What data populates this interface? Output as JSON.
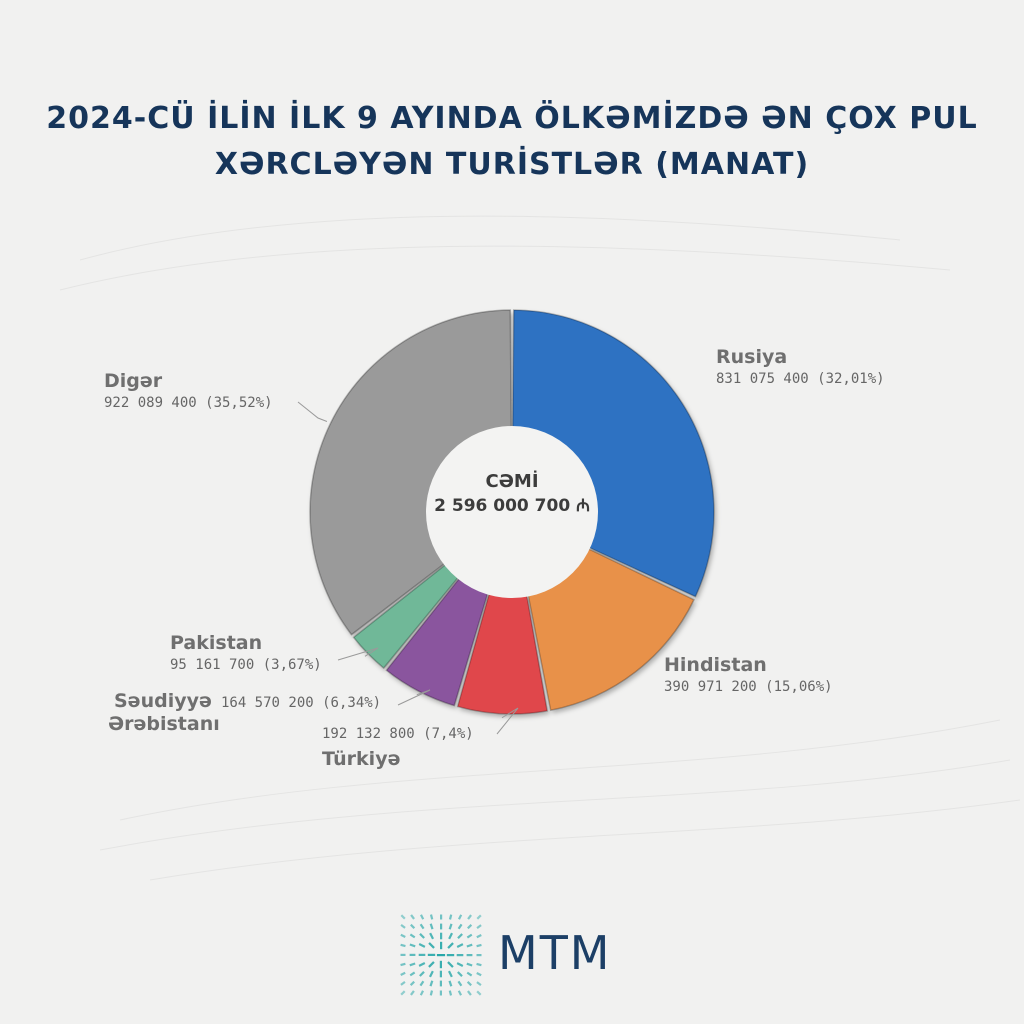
{
  "title_lines": [
    "2024-CÜ İLİN İLK 9 AYINDA ÖLKƏMİZDƏ ƏN ÇOX PUL",
    "XƏRCLƏYƏN TURİSTLƏR (MANAT)"
  ],
  "center": {
    "label": "CƏMİ",
    "total": "2 596 000 700 ₼"
  },
  "brand": {
    "name": "MTM"
  },
  "colors": {
    "Rusiya": "#2f72c2",
    "Hindistan": "#e8914a",
    "Türkiyə": "#e0474c",
    "Səudiyyə Ərəbistanı": "#8a549e",
    "Pakistan": "#6fb898",
    "Digər": "#9a9a9a",
    "title": "#16355a",
    "logo_teal": "#27a7a9",
    "logo_navy": "#1c3f66"
  },
  "chart_data": {
    "type": "pie",
    "title": "2024-CÜ İLİN İLK 9 AYINDA ÖLKƏMİZDƏ ƏN ÇOX PUL XƏRCLƏYƏN TURİSTLƏR (MANAT)",
    "categories": [
      "Rusiya",
      "Hindistan",
      "Türkiyə",
      "Səudiyyə Ərəbistanı",
      "Pakistan",
      "Digər"
    ],
    "values": [
      831075400,
      390971200,
      192132800,
      164570200,
      95161700,
      922089400
    ],
    "percentages": [
      32.01,
      15.06,
      7.4,
      6.34,
      3.67,
      35.52
    ],
    "value_labels": [
      "831 075 400 (32,01%)",
      "390 971 200 (15,06%)",
      "192 132 800 (7,4%)",
      "164 570 200 (6,34%)",
      "95 161 700 (3,67%)",
      "922 089 400 (35,52%)"
    ],
    "name_labels": [
      "Rusiya",
      "Hindistan",
      "Türkiyə",
      "Səudiyyə",
      "Pakistan",
      "Digər"
    ],
    "name_label_line2": "Ərəbistanı",
    "total": 2596000700,
    "donut": true
  }
}
